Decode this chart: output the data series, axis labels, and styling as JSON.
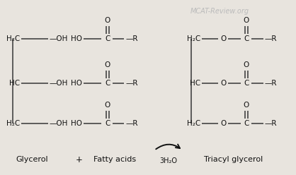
{
  "bg_color": "#e8e4de",
  "line_color": "#444444",
  "text_color": "#111111",
  "watermark_color": "#bbbbbb",
  "watermark": "MCAT-Review.org",
  "label_glycerol": "Glycerol",
  "label_plus": "+",
  "label_fatty": "Fatty acids",
  "label_arrow_sub": "3H₂O",
  "label_product": "Triacyl glycerol",
  "figsize": [
    4.18,
    2.48
  ],
  "dpi": 100
}
